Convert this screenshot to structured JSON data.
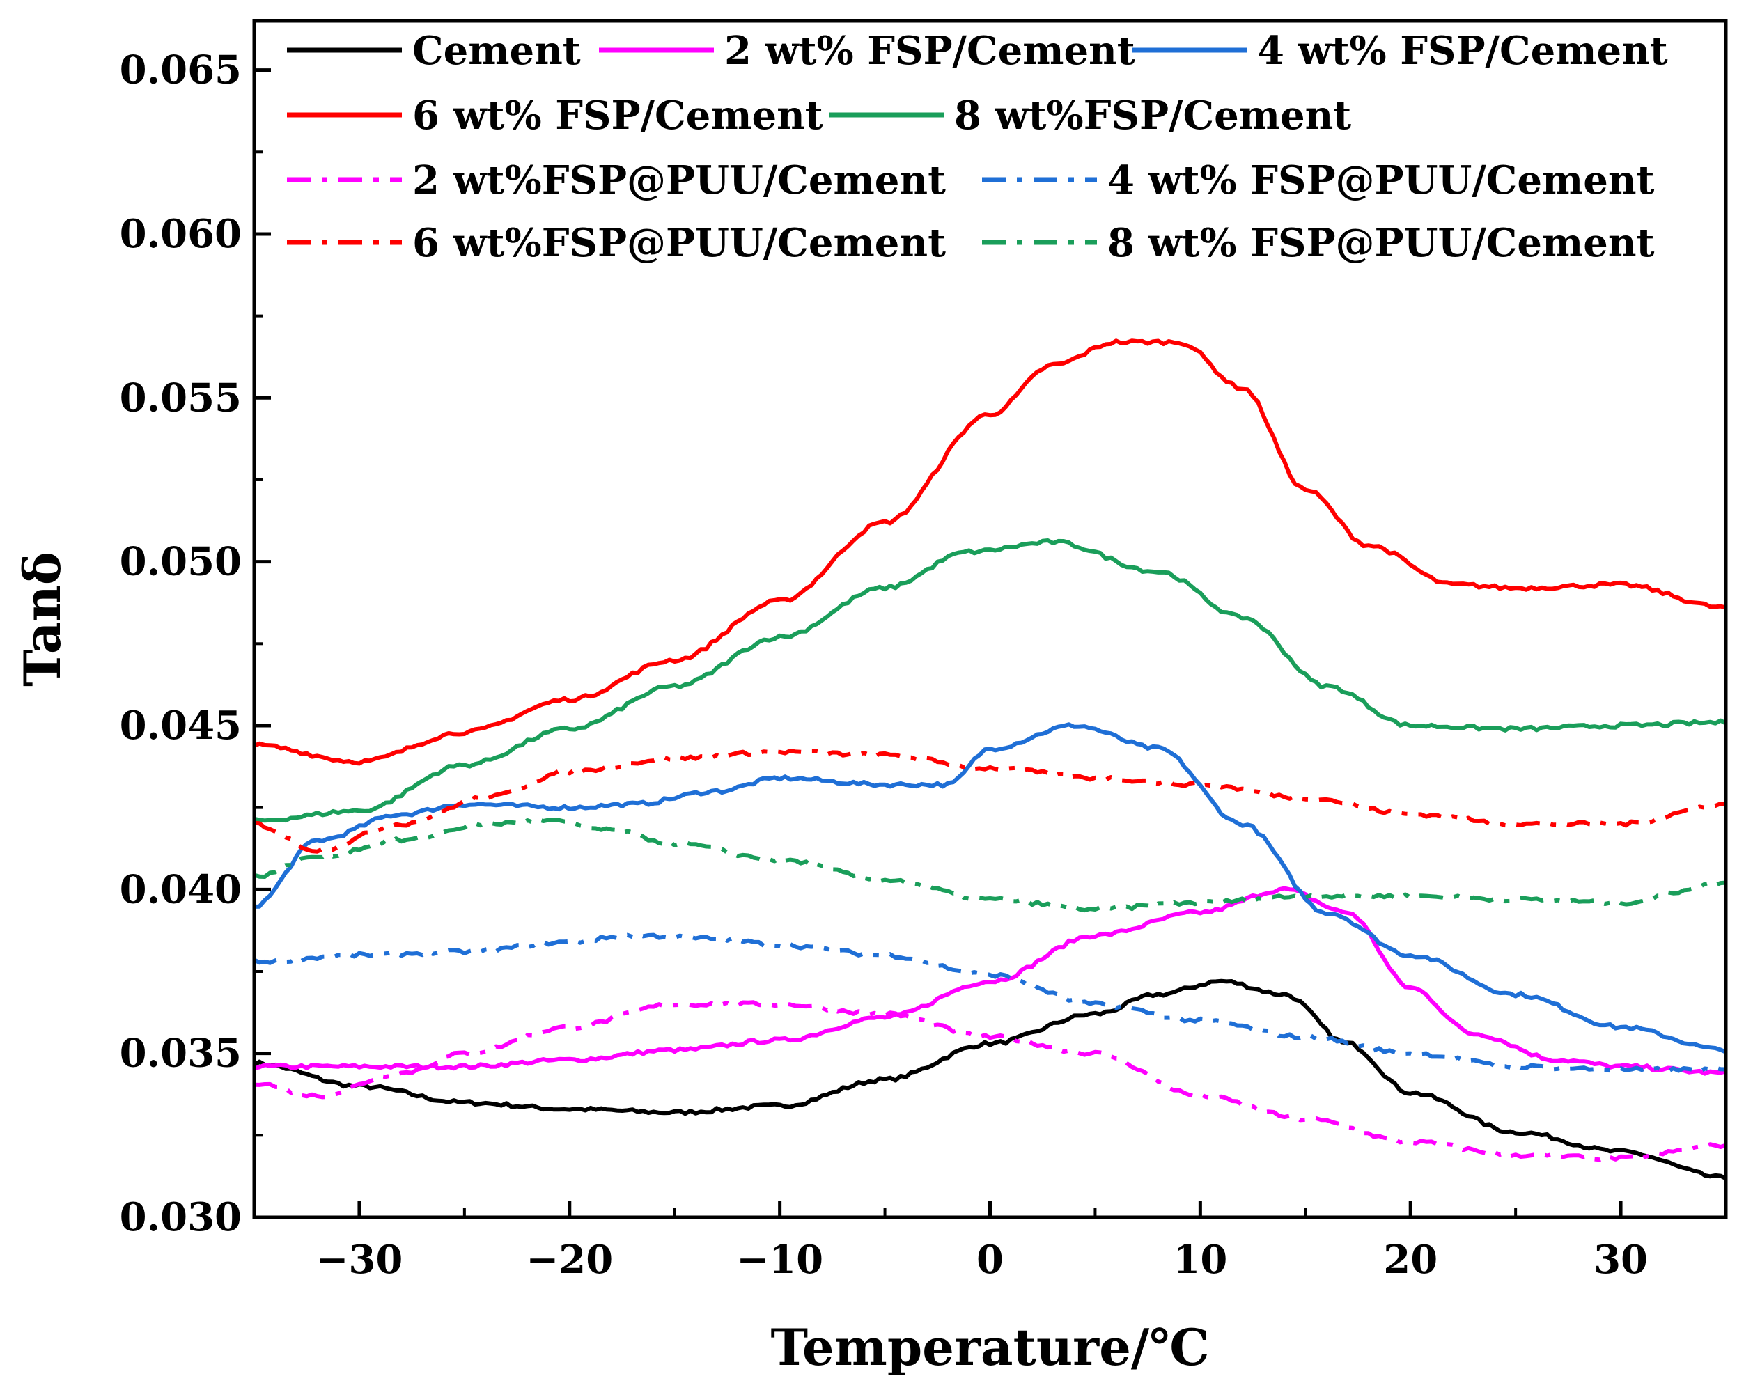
{
  "chart_data": {
    "type": "line",
    "title": "",
    "xlabel": "Temperature/℃",
    "ylabel": "Tanδ",
    "xlim": [
      -35,
      35
    ],
    "ylim": [
      0.03,
      0.0665
    ],
    "x_ticks": [
      -30,
      -20,
      -10,
      0,
      10,
      20,
      30
    ],
    "x_tick_labels": [
      "−30",
      "−20",
      "−10",
      "0",
      "10",
      "20",
      "30"
    ],
    "y_ticks": [
      0.03,
      0.035,
      0.04,
      0.045,
      0.05,
      0.055,
      0.06,
      0.065
    ],
    "y_tick_labels": [
      "0.030",
      "0.035",
      "0.040",
      "0.045",
      "0.050",
      "0.055",
      "0.060",
      "0.065"
    ],
    "grid": false,
    "legend_position": "top",
    "series": [
      {
        "name": "Cement",
        "color": "#000000",
        "style": "solid",
        "x": [
          -35,
          -30,
          -25,
          -20,
          -15,
          -10,
          -5,
          0,
          5,
          8,
          11,
          14,
          17,
          20,
          25,
          30,
          35
        ],
        "y": [
          0.0347,
          0.034,
          0.0335,
          0.0333,
          0.0332,
          0.0334,
          0.0342,
          0.0353,
          0.0362,
          0.0368,
          0.0372,
          0.0368,
          0.0353,
          0.0338,
          0.0326,
          0.032,
          0.0312
        ]
      },
      {
        "name": "2 wt% FSP/Cement",
        "color": "#ff00ff",
        "style": "solid",
        "x": [
          -35,
          -30,
          -25,
          -20,
          -15,
          -10,
          -5,
          0,
          5,
          10,
          14,
          17,
          20,
          23,
          27,
          30,
          35
        ],
        "y": [
          0.0346,
          0.0346,
          0.0346,
          0.0348,
          0.0351,
          0.0354,
          0.0361,
          0.0372,
          0.0386,
          0.0393,
          0.04,
          0.0393,
          0.037,
          0.0356,
          0.0348,
          0.0346,
          0.0344
        ]
      },
      {
        "name": "4 wt% FSP/Cement",
        "color": "#1f6fd6",
        "style": "solid",
        "x": [
          -35,
          -32,
          -28,
          -25,
          -20,
          -17,
          -13,
          -10,
          -5,
          -2,
          0,
          4,
          8,
          12,
          16,
          20,
          25,
          30,
          35
        ],
        "y": [
          0.0395,
          0.0415,
          0.0423,
          0.0426,
          0.0425,
          0.0426,
          0.043,
          0.0434,
          0.0432,
          0.0432,
          0.0443,
          0.045,
          0.0443,
          0.042,
          0.0393,
          0.038,
          0.0368,
          0.0358,
          0.0351
        ]
      },
      {
        "name": "6 wt% FSP/Cement",
        "color": "#ff0000",
        "style": "solid",
        "x": [
          -35,
          -30,
          -25,
          -20,
          -15,
          -10,
          -5,
          0,
          3,
          6,
          9,
          12,
          15,
          18,
          22,
          25,
          30,
          35
        ],
        "y": [
          0.0444,
          0.0439,
          0.0448,
          0.0458,
          0.047,
          0.0488,
          0.0512,
          0.0545,
          0.056,
          0.0567,
          0.0567,
          0.0553,
          0.0522,
          0.0505,
          0.0493,
          0.0492,
          0.0493,
          0.0486
        ]
      },
      {
        "name": "8 wt%FSP/Cement",
        "color": "#1a9e5a",
        "style": "solid",
        "x": [
          -35,
          -30,
          -25,
          -20,
          -15,
          -10,
          -5,
          -1,
          3,
          8,
          12,
          16,
          20,
          25,
          30,
          35
        ],
        "y": [
          0.0421,
          0.0424,
          0.0438,
          0.0449,
          0.0462,
          0.0477,
          0.0492,
          0.0503,
          0.0506,
          0.0497,
          0.0483,
          0.0462,
          0.045,
          0.0449,
          0.045,
          0.0451
        ]
      },
      {
        "name": "2 wt%FSP@PUU/Cement",
        "color": "#ff00ff",
        "style": "dashdot",
        "x": [
          -35,
          -32,
          -28,
          -25,
          -20,
          -15,
          -10,
          -5,
          0,
          5,
          10,
          15,
          20,
          25,
          30,
          35
        ],
        "y": [
          0.0341,
          0.0337,
          0.0344,
          0.035,
          0.0358,
          0.0365,
          0.0365,
          0.0362,
          0.0355,
          0.035,
          0.0337,
          0.033,
          0.0323,
          0.0319,
          0.0318,
          0.0322
        ]
      },
      {
        "name": "4 wt%  FSP@PUU/Cement",
        "color": "#1f6fd6",
        "style": "dashdot",
        "x": [
          -35,
          -30,
          -25,
          -20,
          -17,
          -13,
          -10,
          -5,
          0,
          5,
          10,
          15,
          20,
          25,
          30,
          35
        ],
        "y": [
          0.0378,
          0.038,
          0.0381,
          0.0384,
          0.0386,
          0.0385,
          0.0383,
          0.038,
          0.0374,
          0.0365,
          0.036,
          0.0355,
          0.035,
          0.0346,
          0.0345,
          0.0345
        ]
      },
      {
        "name": "6 wt%FSP@PUU/Cement",
        "color": "#ff0000",
        "style": "dashdot",
        "x": [
          -35,
          -32,
          -28,
          -24,
          -20,
          -15,
          -10,
          -5,
          0,
          5,
          10,
          15,
          20,
          25,
          30,
          35
        ],
        "y": [
          0.042,
          0.0412,
          0.042,
          0.0428,
          0.0436,
          0.044,
          0.0442,
          0.0441,
          0.0437,
          0.0434,
          0.0432,
          0.0428,
          0.0423,
          0.042,
          0.042,
          0.0426
        ]
      },
      {
        "name": "8 wt%  FSP@PUU/Cement",
        "color": "#1a9e5a",
        "style": "dashdot",
        "x": [
          -35,
          -32,
          -28,
          -24,
          -21,
          -18,
          -15,
          -10,
          -5,
          0,
          5,
          10,
          15,
          20,
          25,
          30,
          35
        ],
        "y": [
          0.0404,
          0.041,
          0.0415,
          0.042,
          0.0421,
          0.0418,
          0.0414,
          0.0409,
          0.0403,
          0.0397,
          0.0394,
          0.0396,
          0.0398,
          0.0398,
          0.0397,
          0.0396,
          0.0402
        ]
      }
    ]
  }
}
